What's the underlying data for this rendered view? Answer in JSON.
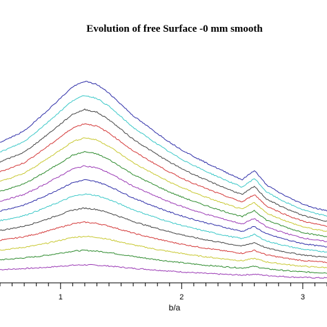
{
  "chart_data": {
    "type": "line",
    "title": "Evolution of free Surface -0 mm smooth",
    "xlabel": "b/a",
    "ylabel": "",
    "xlim": [
      0.5,
      3.2
    ],
    "ylim": [
      0,
      11
    ],
    "x_ticks": [
      1,
      2,
      3
    ],
    "x_tick_labels": [
      "1",
      "2",
      "3"
    ],
    "grid": false,
    "legend": "none",
    "colors": [
      "#9b3bb5",
      "#2e8b2e",
      "#c8c832",
      "#d43a3a",
      "#444444",
      "#3cc8c8",
      "#2e2ea8"
    ],
    "x": [
      0.5,
      0.6,
      0.7,
      0.8,
      0.9,
      1.0,
      1.1,
      1.2,
      1.3,
      1.4,
      1.5,
      1.6,
      1.7,
      1.8,
      1.9,
      2.0,
      2.1,
      2.2,
      2.3,
      2.4,
      2.5,
      2.6,
      2.7,
      2.8,
      2.9,
      3.0,
      3.1,
      3.2
    ],
    "series": [
      {
        "values": [
          0.68,
          0.7,
          0.73,
          0.76,
          0.8,
          0.85,
          0.9,
          0.92,
          0.9,
          0.86,
          0.8,
          0.74,
          0.7,
          0.65,
          0.6,
          0.56,
          0.52,
          0.48,
          0.45,
          0.42,
          0.4,
          0.44,
          0.38,
          0.34,
          0.3,
          0.28,
          0.26,
          0.25
        ]
      },
      {
        "values": [
          1.18,
          1.22,
          1.28,
          1.34,
          1.42,
          1.52,
          1.62,
          1.66,
          1.62,
          1.55,
          1.45,
          1.35,
          1.26,
          1.18,
          1.1,
          1.03,
          0.96,
          0.9,
          0.85,
          0.8,
          0.76,
          0.84,
          0.72,
          0.66,
          0.6,
          0.56,
          0.53,
          0.51
        ]
      },
      {
        "values": [
          1.68,
          1.74,
          1.82,
          1.92,
          2.04,
          2.18,
          2.32,
          2.38,
          2.33,
          2.22,
          2.08,
          1.94,
          1.82,
          1.7,
          1.6,
          1.5,
          1.41,
          1.33,
          1.26,
          1.19,
          1.13,
          1.25,
          1.07,
          0.99,
          0.91,
          0.85,
          0.81,
          0.78
        ]
      },
      {
        "values": [
          2.18,
          2.26,
          2.36,
          2.5,
          2.66,
          2.84,
          3.02,
          3.1,
          3.04,
          2.9,
          2.72,
          2.54,
          2.38,
          2.24,
          2.1,
          1.98,
          1.87,
          1.77,
          1.68,
          1.59,
          1.51,
          1.66,
          1.43,
          1.32,
          1.22,
          1.14,
          1.09,
          1.05
        ]
      },
      {
        "values": [
          2.68,
          2.78,
          2.9,
          3.08,
          3.28,
          3.5,
          3.72,
          3.82,
          3.75,
          3.58,
          3.36,
          3.14,
          2.95,
          2.78,
          2.61,
          2.46,
          2.32,
          2.2,
          2.09,
          1.98,
          1.88,
          2.06,
          1.78,
          1.65,
          1.53,
          1.43,
          1.36,
          1.31
        ]
      },
      {
        "values": [
          3.18,
          3.3,
          3.44,
          3.66,
          3.9,
          4.16,
          4.42,
          4.54,
          4.46,
          4.26,
          4.0,
          3.74,
          3.52,
          3.31,
          3.11,
          2.94,
          2.78,
          2.64,
          2.5,
          2.37,
          2.26,
          2.47,
          2.14,
          1.98,
          1.84,
          1.72,
          1.64,
          1.58
        ]
      },
      {
        "values": [
          3.68,
          3.82,
          3.98,
          4.24,
          4.52,
          4.82,
          5.12,
          5.26,
          5.17,
          4.94,
          4.64,
          4.34,
          4.09,
          3.85,
          3.62,
          3.42,
          3.24,
          3.07,
          2.92,
          2.77,
          2.63,
          2.88,
          2.5,
          2.32,
          2.15,
          2.01,
          1.91,
          1.84
        ]
      },
      {
        "values": [
          4.18,
          4.34,
          4.52,
          4.82,
          5.14,
          5.48,
          5.82,
          5.98,
          5.88,
          5.62,
          5.28,
          4.94,
          4.66,
          4.39,
          4.13,
          3.91,
          3.7,
          3.51,
          3.34,
          3.17,
          3.01,
          3.29,
          2.86,
          2.65,
          2.46,
          2.3,
          2.19,
          2.11
        ]
      },
      {
        "values": [
          4.68,
          4.86,
          5.06,
          5.4,
          5.76,
          6.14,
          6.52,
          6.7,
          6.59,
          6.3,
          5.92,
          5.54,
          5.23,
          4.93,
          4.64,
          4.39,
          4.16,
          3.95,
          3.75,
          3.56,
          3.38,
          3.7,
          3.21,
          2.98,
          2.76,
          2.58,
          2.46,
          2.37
        ]
      },
      {
        "values": [
          5.18,
          5.38,
          5.6,
          5.98,
          6.38,
          6.8,
          7.22,
          7.42,
          7.3,
          6.98,
          6.56,
          6.14,
          5.8,
          5.47,
          5.15,
          4.87,
          4.62,
          4.38,
          4.16,
          3.95,
          3.76,
          4.11,
          3.57,
          3.31,
          3.07,
          2.87,
          2.73,
          2.63
        ]
      },
      {
        "values": [
          5.68,
          5.9,
          6.14,
          6.56,
          7.0,
          7.46,
          7.92,
          8.14,
          8.01,
          7.66,
          7.2,
          6.74,
          6.37,
          6.01,
          5.66,
          5.35,
          5.08,
          4.82,
          4.58,
          4.35,
          4.13,
          4.52,
          3.93,
          3.64,
          3.38,
          3.16,
          3.01,
          2.9
        ]
      },
      {
        "values": [
          6.18,
          6.42,
          6.68,
          7.14,
          7.62,
          8.12,
          8.62,
          8.86,
          8.72,
          8.34,
          7.84,
          7.34,
          6.94,
          6.55,
          6.17,
          5.84,
          5.54,
          5.26,
          5.0,
          4.75,
          4.51,
          4.93,
          4.29,
          3.97,
          3.69,
          3.45,
          3.28,
          3.16
        ]
      },
      {
        "values": [
          6.68,
          6.94,
          7.22,
          7.72,
          8.24,
          8.78,
          9.32,
          9.58,
          9.43,
          9.02,
          8.48,
          7.94,
          7.51,
          7.09,
          6.68,
          6.32,
          6.0,
          5.7,
          5.42,
          5.15,
          4.89,
          5.34,
          4.65,
          4.3,
          4.0,
          3.74,
          3.55,
          3.42
        ]
      },
      {
        "values": [
          7.18,
          7.46,
          7.76,
          8.3,
          8.86,
          9.44,
          10.02,
          10.3,
          10.14,
          9.7,
          9.12,
          8.54,
          8.08,
          7.63,
          7.19,
          6.8,
          6.46,
          6.14,
          5.84,
          5.55,
          5.27,
          5.75,
          5.01,
          4.63,
          4.31,
          4.03,
          3.82,
          3.68
        ]
      }
    ]
  }
}
